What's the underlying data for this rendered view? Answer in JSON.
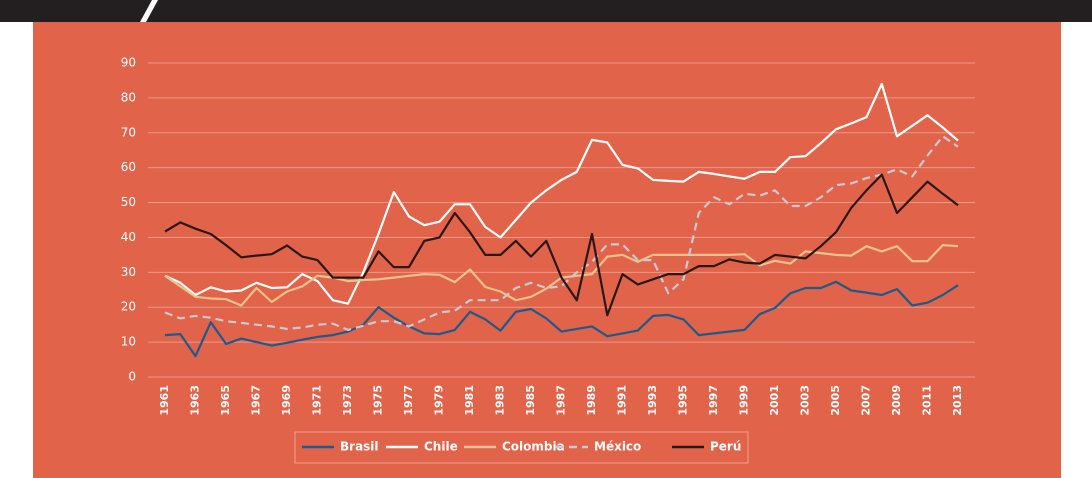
{
  "chart_data": {
    "type": "line",
    "categories": [
      "1961",
      null,
      "1963",
      null,
      "1965",
      null,
      "1967",
      null,
      "1969",
      null,
      "1971",
      null,
      "1973",
      null,
      "1975",
      null,
      "1977",
      null,
      "1979",
      null,
      "1981",
      null,
      "1983",
      null,
      "1985",
      null,
      "1987",
      null,
      "1989",
      null,
      "1991",
      null,
      "1993",
      null,
      "1995",
      null,
      "1997",
      null,
      "1999",
      null,
      "2001",
      null,
      "2003",
      null,
      "2005",
      null,
      "2007",
      null,
      "2009",
      null,
      "2011",
      null,
      "2013"
    ],
    "series": [
      {
        "name": "Brasil",
        "color": "#1d5a8c",
        "dashed": false,
        "values": [
          12,
          12.3,
          6,
          15.7,
          9.5,
          11,
          10,
          9,
          9.8,
          10.7,
          11.5,
          12,
          13,
          15,
          20,
          17,
          14.5,
          12.5,
          12.3,
          13.5,
          18.7,
          16.5,
          13.3,
          18.7,
          19.5,
          16.8,
          13,
          13.8,
          14.5,
          11.7,
          12.5,
          13.3,
          17.5,
          17.8,
          16.5,
          12,
          12.5,
          13,
          13.5,
          18,
          19.8,
          24,
          25.5,
          25.5,
          27.3,
          24.8,
          24.2,
          23.5,
          25.2,
          20.5,
          21.3,
          23.5,
          26.3
        ]
      },
      {
        "name": "Chile",
        "color": "#ffffff",
        "dashed": false,
        "values": [
          29,
          27,
          23.5,
          25.7,
          24.5,
          24.8,
          27,
          25.5,
          25.7,
          29.5,
          27.5,
          22,
          21,
          30,
          41,
          53,
          46,
          43.5,
          44.5,
          49.5,
          49.5,
          43,
          40,
          45,
          50,
          53.5,
          56.5,
          58.8,
          68,
          67.2,
          60.8,
          59.8,
          56.5,
          56.2,
          56,
          58.8,
          58.2,
          57.5,
          56.8,
          58.8,
          58.8,
          63,
          63.3,
          67,
          71,
          72.7,
          74.5,
          84,
          69,
          72,
          75,
          71.5,
          67.8
        ]
      },
      {
        "name": "Colombia",
        "color": "#e8c28c",
        "dashed": false,
        "values": [
          29,
          26,
          23,
          22.5,
          22.3,
          20.5,
          25.5,
          21.5,
          24.5,
          26,
          29,
          28.5,
          27.5,
          27.8,
          28,
          28.5,
          29,
          29.5,
          29.3,
          27.2,
          30.8,
          25.8,
          24.5,
          22,
          23,
          25.3,
          28.5,
          29,
          29.5,
          34.5,
          35,
          33,
          35,
          35,
          35,
          35,
          35,
          35,
          35.2,
          32,
          33.3,
          32.5,
          36,
          35.5,
          35,
          34.8,
          37.5,
          36,
          37.5,
          33.2,
          33.2,
          37.8,
          37.5
        ]
      },
      {
        "name": "México",
        "color": "#c9c9d4",
        "dashed": true,
        "values": [
          18.5,
          16.8,
          17.5,
          17,
          16,
          15.5,
          15,
          14.5,
          13.8,
          14.2,
          15,
          15.3,
          13.5,
          14.7,
          16,
          16,
          14.5,
          16.5,
          18.5,
          19,
          22,
          22,
          22,
          25.5,
          27,
          25.5,
          26,
          30,
          33,
          38,
          38,
          33.5,
          33.5,
          24,
          28,
          47,
          51.5,
          49.5,
          52.5,
          52,
          53.5,
          49,
          49,
          51.5,
          55,
          55.5,
          57,
          58,
          59.5,
          57.5,
          63.5,
          69,
          66
        ]
      },
      {
        "name": "Perú",
        "color": "#2a1818",
        "dashed": false,
        "values": [
          41.7,
          44.3,
          42.5,
          41,
          37.8,
          34.3,
          34.8,
          35.2,
          37.7,
          34.5,
          33.5,
          28.5,
          28.5,
          28.5,
          36,
          31.5,
          31.5,
          39,
          40,
          47,
          41.5,
          35,
          35,
          39,
          34.5,
          39,
          28.5,
          22,
          41,
          17.7,
          29.5,
          26.5,
          28,
          29.5,
          29.5,
          31.8,
          31.8,
          33.7,
          32.8,
          32.5,
          35,
          34.5,
          34,
          37.5,
          41.5,
          48.5,
          53.5,
          58,
          47,
          51.5,
          56,
          52.5,
          49.2
        ]
      }
    ],
    "ylim": [
      0,
      90
    ],
    "yticks": [
      0,
      10,
      20,
      30,
      40,
      50,
      60,
      70,
      80,
      90
    ],
    "grid": true,
    "legend": "bottom"
  }
}
